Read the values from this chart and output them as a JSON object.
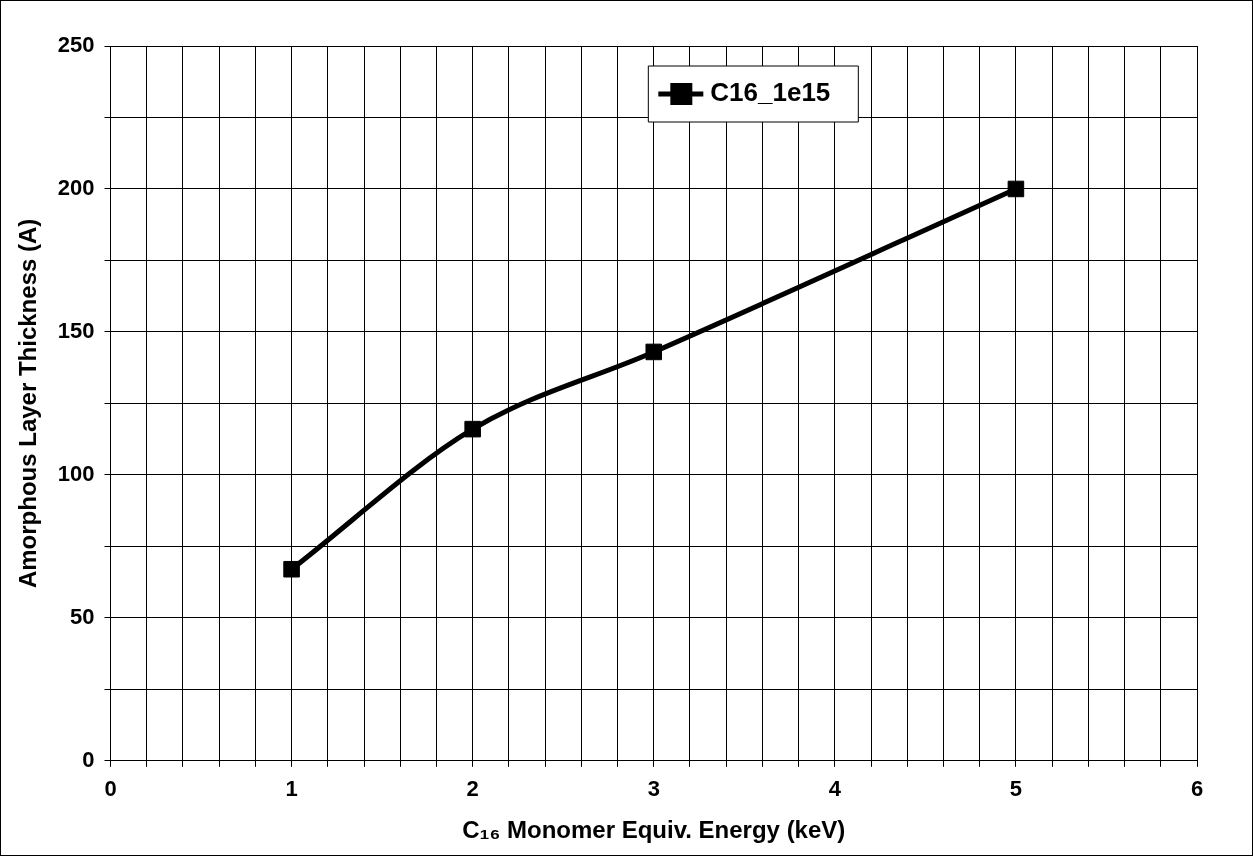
{
  "chart_data": {
    "type": "line",
    "xlabel": "C₁₆ Monomer Equiv. Energy (keV)",
    "ylabel": "Amorphous Layer Thickness (A)",
    "x": [
      1,
      2,
      3,
      5
    ],
    "series": [
      {
        "name": "C16_1e15",
        "color": "#000000",
        "values": [
          67,
          116,
          143,
          200
        ]
      }
    ],
    "xlim": [
      0,
      6
    ],
    "xticks": [
      0,
      {
        "value": 0.2,
        "label": null
      },
      {
        "value": 0.4,
        "label": null
      },
      {
        "value": 0.6,
        "label": null
      },
      {
        "value": 0.8,
        "label": null
      },
      1,
      {
        "value": 1.2,
        "label": null
      },
      {
        "value": 1.4,
        "label": null
      },
      {
        "value": 1.6,
        "label": null
      },
      {
        "value": 1.8,
        "label": null
      },
      2,
      {
        "value": 2.2,
        "label": null
      },
      {
        "value": 2.4,
        "label": null
      },
      {
        "value": 2.6,
        "label": null
      },
      {
        "value": 2.8,
        "label": null
      },
      3,
      {
        "value": 3.2,
        "label": null
      },
      {
        "value": 3.4,
        "label": null
      },
      {
        "value": 3.6,
        "label": null
      },
      {
        "value": 3.8,
        "label": null
      },
      4,
      {
        "value": 4.2,
        "label": null
      },
      {
        "value": 4.4,
        "label": null
      },
      {
        "value": 4.6,
        "label": null
      },
      {
        "value": 4.8,
        "label": null
      },
      5,
      {
        "value": 5.2,
        "label": null
      },
      {
        "value": 5.4,
        "label": null
      },
      {
        "value": 5.6,
        "label": null
      },
      {
        "value": 5.8,
        "label": null
      },
      6
    ],
    "ylim": [
      0,
      250
    ],
    "yticks": [
      0,
      {
        "value": 25,
        "label": null
      },
      50,
      {
        "value": 75,
        "label": null
      },
      100,
      {
        "value": 125,
        "label": null
      },
      150,
      {
        "value": 175,
        "label": null
      },
      200,
      {
        "value": 225,
        "label": null
      },
      250
    ],
    "grid": true,
    "legend": "top right",
    "marker": "square",
    "line_style": "solid"
  }
}
